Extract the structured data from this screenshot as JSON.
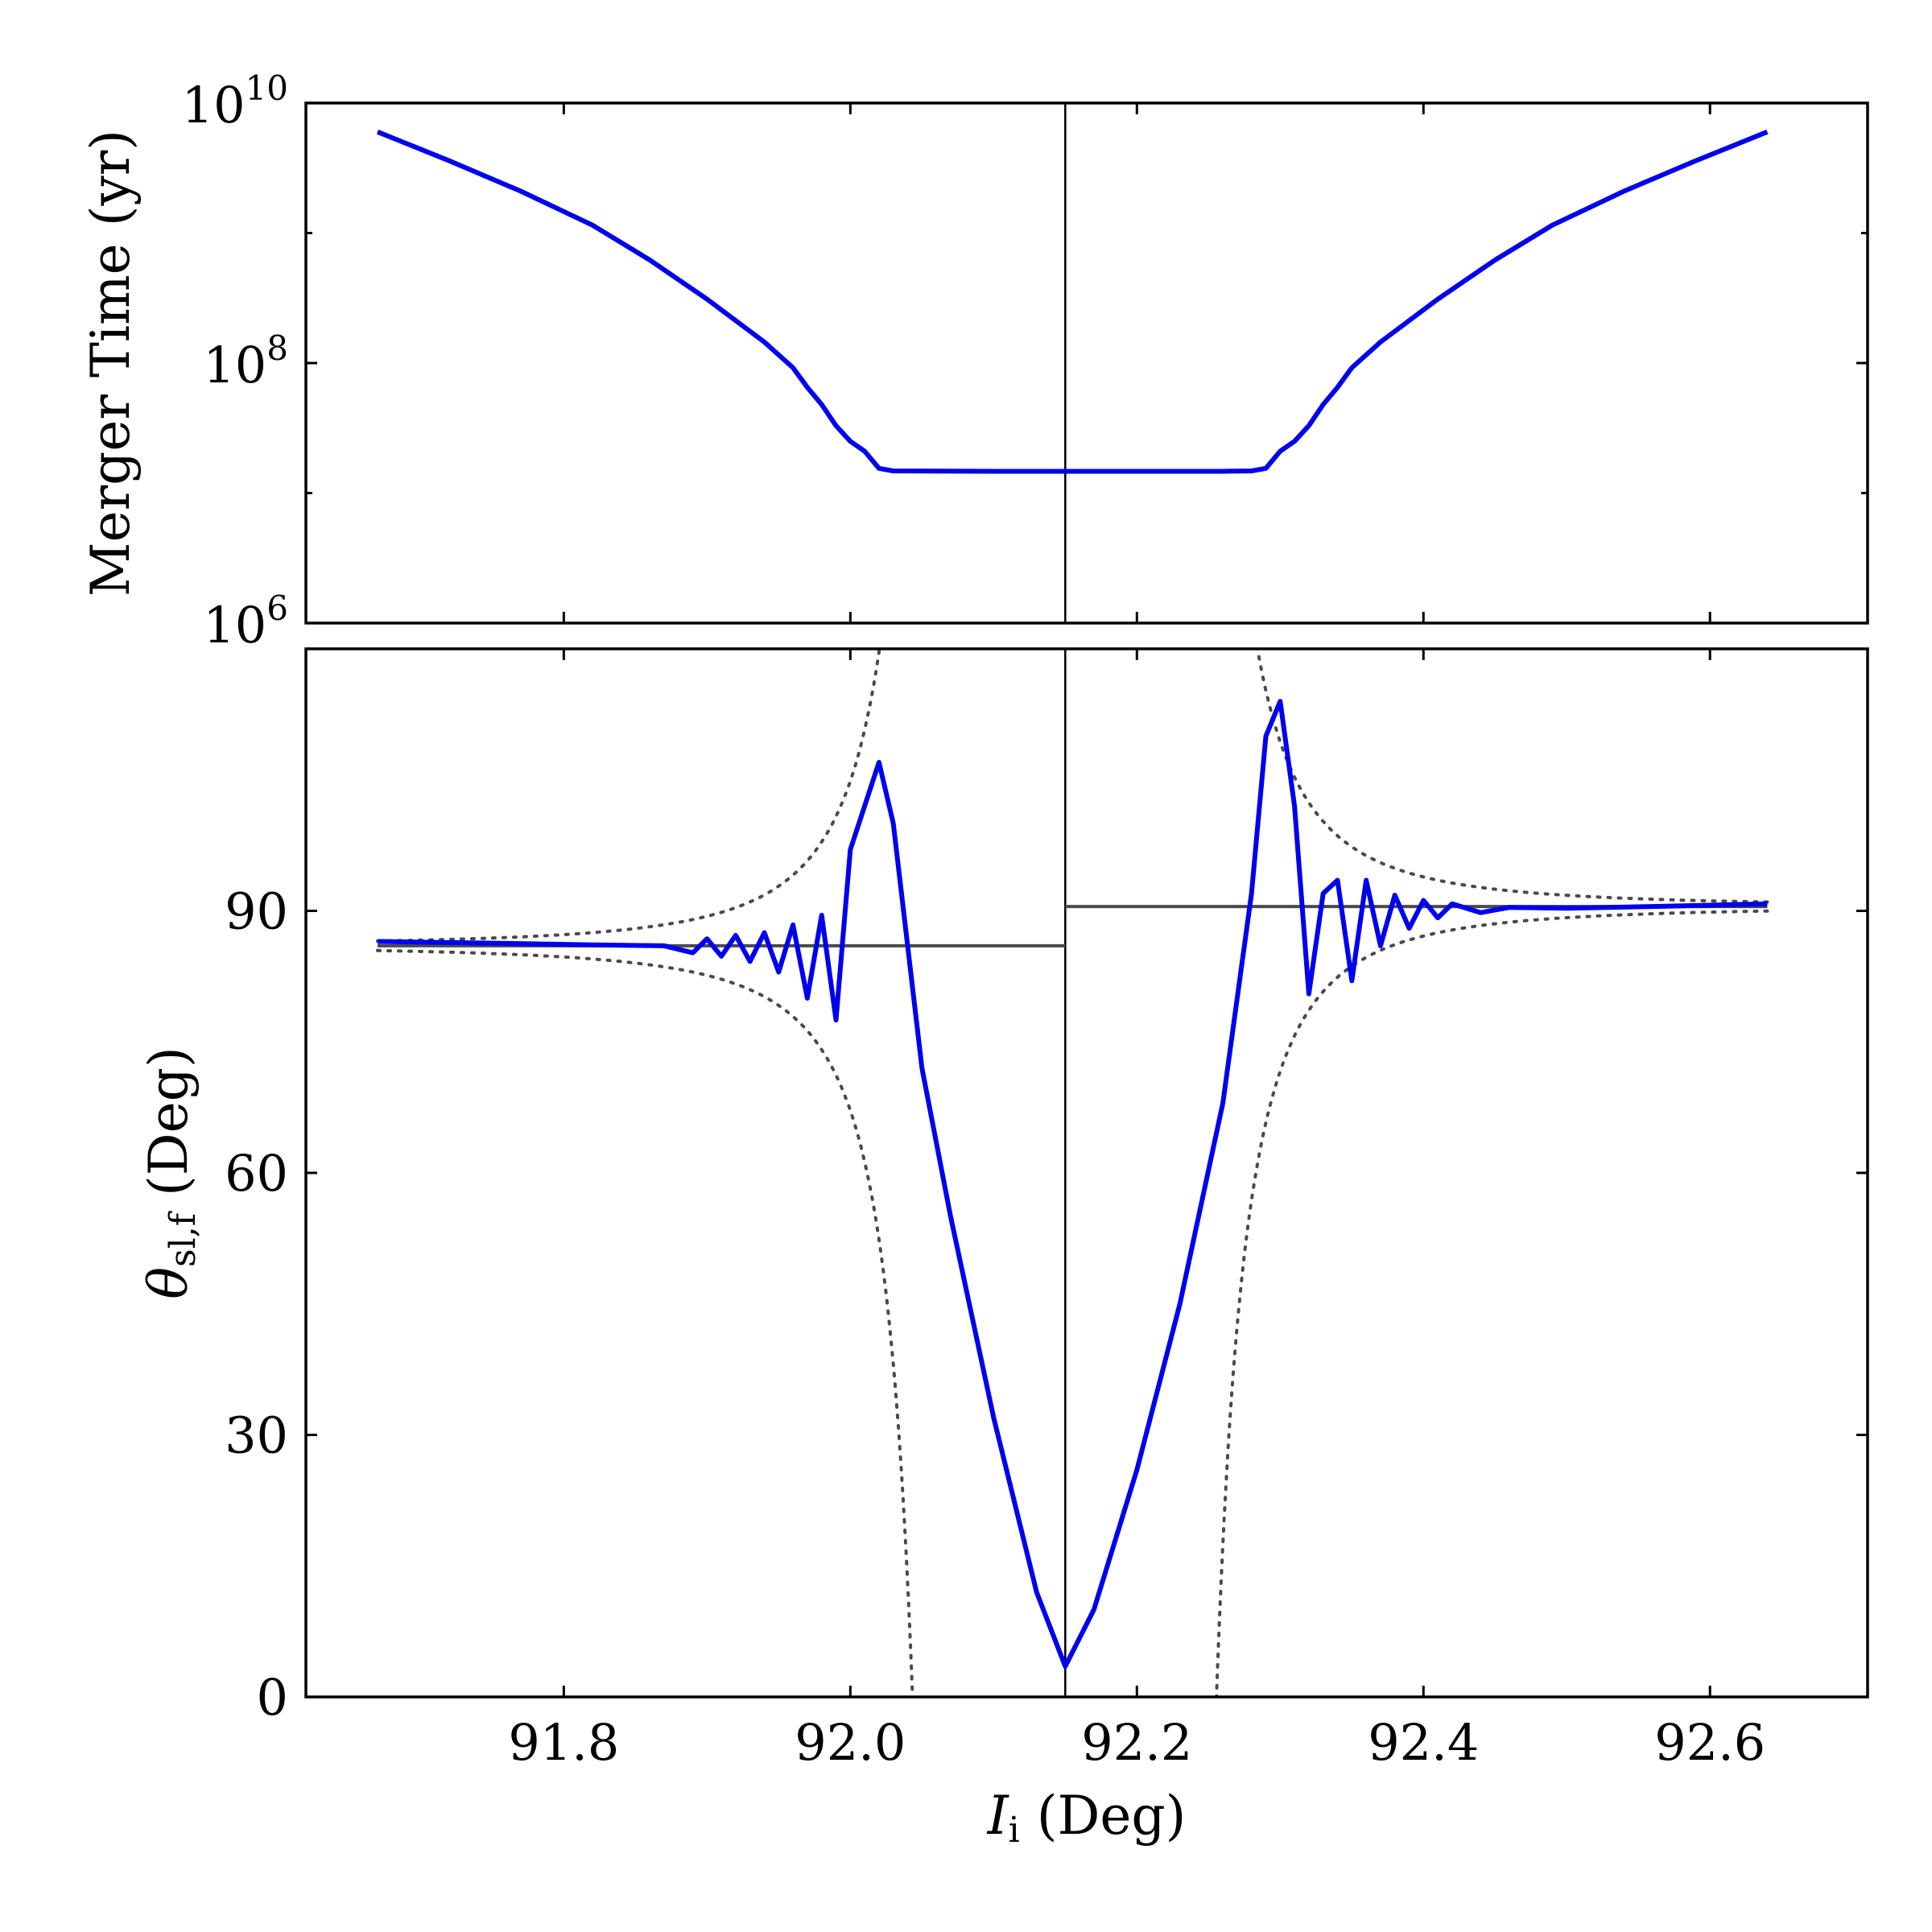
{
  "chart_data": [
    {
      "type": "line",
      "panel": "top",
      "ylabel": "Merger Time (yr)",
      "yscale": "log",
      "xlim": [
        91.62,
        92.71
      ],
      "ylim": [
        1000000,
        10000000000
      ],
      "yticks": [
        {
          "value": 1000000,
          "base": "10",
          "exp": "6"
        },
        {
          "value": 100000000,
          "base": "10",
          "exp": "8"
        },
        {
          "value": 10000000000,
          "base": "10",
          "exp": "10"
        }
      ],
      "xticks": [
        91.8,
        92.0,
        92.2,
        92.4,
        92.6
      ],
      "vline_x": 92.15,
      "series": [
        {
          "color": "#0000ee",
          "points": [
            [
              91.67,
              6000000000.0
            ],
            [
              91.72,
              3600000000.0
            ],
            [
              91.77,
              2100000000.0
            ],
            [
              91.82,
              1150000000.0
            ],
            [
              91.86,
              620000000.0
            ],
            [
              91.9,
              310000000.0
            ],
            [
              91.94,
              145000000.0
            ],
            [
              91.96,
              92000000.0
            ],
            [
              91.97,
              65000000.0
            ],
            [
              91.98,
              48000000.0
            ],
            [
              91.99,
              33000000.0
            ],
            [
              92.0,
              25000000.0
            ],
            [
              92.01,
              21000000.0
            ],
            [
              92.02,
              15500000.0
            ],
            [
              92.03,
              14800000.0
            ],
            [
              92.1,
              14700000.0
            ],
            [
              92.15,
              14700000.0
            ],
            [
              92.2,
              14700000.0
            ],
            [
              92.26,
              14700000.0
            ],
            [
              92.28,
              14800000.0
            ],
            [
              92.29,
              15500000.0
            ],
            [
              92.3,
              21000000.0
            ],
            [
              92.31,
              25000000.0
            ],
            [
              92.32,
              33000000.0
            ],
            [
              92.33,
              48000000.0
            ],
            [
              92.34,
              65000000.0
            ],
            [
              92.35,
              92000000.0
            ],
            [
              92.37,
              145000000.0
            ],
            [
              92.41,
              310000000.0
            ],
            [
              92.45,
              620000000.0
            ],
            [
              92.49,
              1150000000.0
            ],
            [
              92.54,
              2100000000.0
            ],
            [
              92.59,
              3600000000.0
            ],
            [
              92.64,
              6000000000.0
            ]
          ]
        }
      ]
    },
    {
      "type": "line",
      "panel": "bottom",
      "xlabel_main": "I",
      "xlabel_sub": "i",
      "xlabel_rest": " (Deg)",
      "ylabel_main": "θ",
      "ylabel_sub": "sl,f",
      "ylabel_rest": " (Deg)",
      "xlim": [
        91.62,
        92.71
      ],
      "ylim": [
        0,
        120
      ],
      "xticks": [
        {
          "value": 91.8,
          "label": "91.8"
        },
        {
          "value": 92.0,
          "label": "92.0"
        },
        {
          "value": 92.2,
          "label": "92.2"
        },
        {
          "value": 92.4,
          "label": "92.4"
        },
        {
          "value": 92.6,
          "label": "92.6"
        }
      ],
      "yticks": [
        {
          "value": 0,
          "label": "0"
        },
        {
          "value": 30,
          "label": "30"
        },
        {
          "value": 60,
          "label": "60"
        },
        {
          "value": 90,
          "label": "90"
        }
      ],
      "vline_x": 92.15,
      "hlines": [
        {
          "x0": 91.67,
          "x1": 92.15,
          "y": 86.0
        },
        {
          "x0": 92.15,
          "x1": 92.64,
          "y": 90.5
        }
      ],
      "envelopes": {
        "left_center": 92.09,
        "right_center": 92.21,
        "left_mid": 86.0,
        "right_mid": 90.5,
        "amplitude": 1.8
      },
      "series": [
        {
          "color": "#0000ee",
          "points": [
            [
              91.67,
              86.5
            ],
            [
              91.75,
              86.3
            ],
            [
              91.82,
              86.1
            ],
            [
              91.87,
              86.0
            ],
            [
              91.89,
              85.2
            ],
            [
              91.9,
              86.8
            ],
            [
              91.91,
              84.8
            ],
            [
              91.92,
              87.2
            ],
            [
              91.93,
              84.2
            ],
            [
              91.94,
              87.5
            ],
            [
              91.95,
              83.0
            ],
            [
              91.96,
              88.4
            ],
            [
              91.97,
              80.0
            ],
            [
              91.98,
              89.5
            ],
            [
              91.99,
              77.5
            ],
            [
              92.0,
              97.0
            ],
            [
              92.02,
              107.0
            ],
            [
              92.03,
              100.0
            ],
            [
              92.05,
              72.0
            ],
            [
              92.07,
              55.0
            ],
            [
              92.1,
              32.0
            ],
            [
              92.13,
              12.0
            ],
            [
              92.15,
              3.5
            ],
            [
              92.17,
              10.0
            ],
            [
              92.2,
              26.0
            ],
            [
              92.23,
              45.0
            ],
            [
              92.26,
              68.0
            ],
            [
              92.28,
              92.0
            ],
            [
              92.29,
              110.0
            ],
            [
              92.3,
              114.0
            ],
            [
              92.31,
              102.0
            ],
            [
              92.32,
              80.5
            ],
            [
              92.33,
              92.0
            ],
            [
              92.34,
              93.5
            ],
            [
              92.35,
              82.0
            ],
            [
              92.36,
              93.5
            ],
            [
              92.37,
              86.0
            ],
            [
              92.38,
              91.8
            ],
            [
              92.39,
              88.0
            ],
            [
              92.4,
              91.2
            ],
            [
              92.41,
              89.2
            ],
            [
              92.42,
              90.8
            ],
            [
              92.44,
              89.8
            ],
            [
              92.46,
              90.4
            ],
            [
              92.5,
              90.3
            ],
            [
              92.56,
              90.5
            ],
            [
              92.64,
              90.8
            ]
          ]
        }
      ]
    }
  ]
}
